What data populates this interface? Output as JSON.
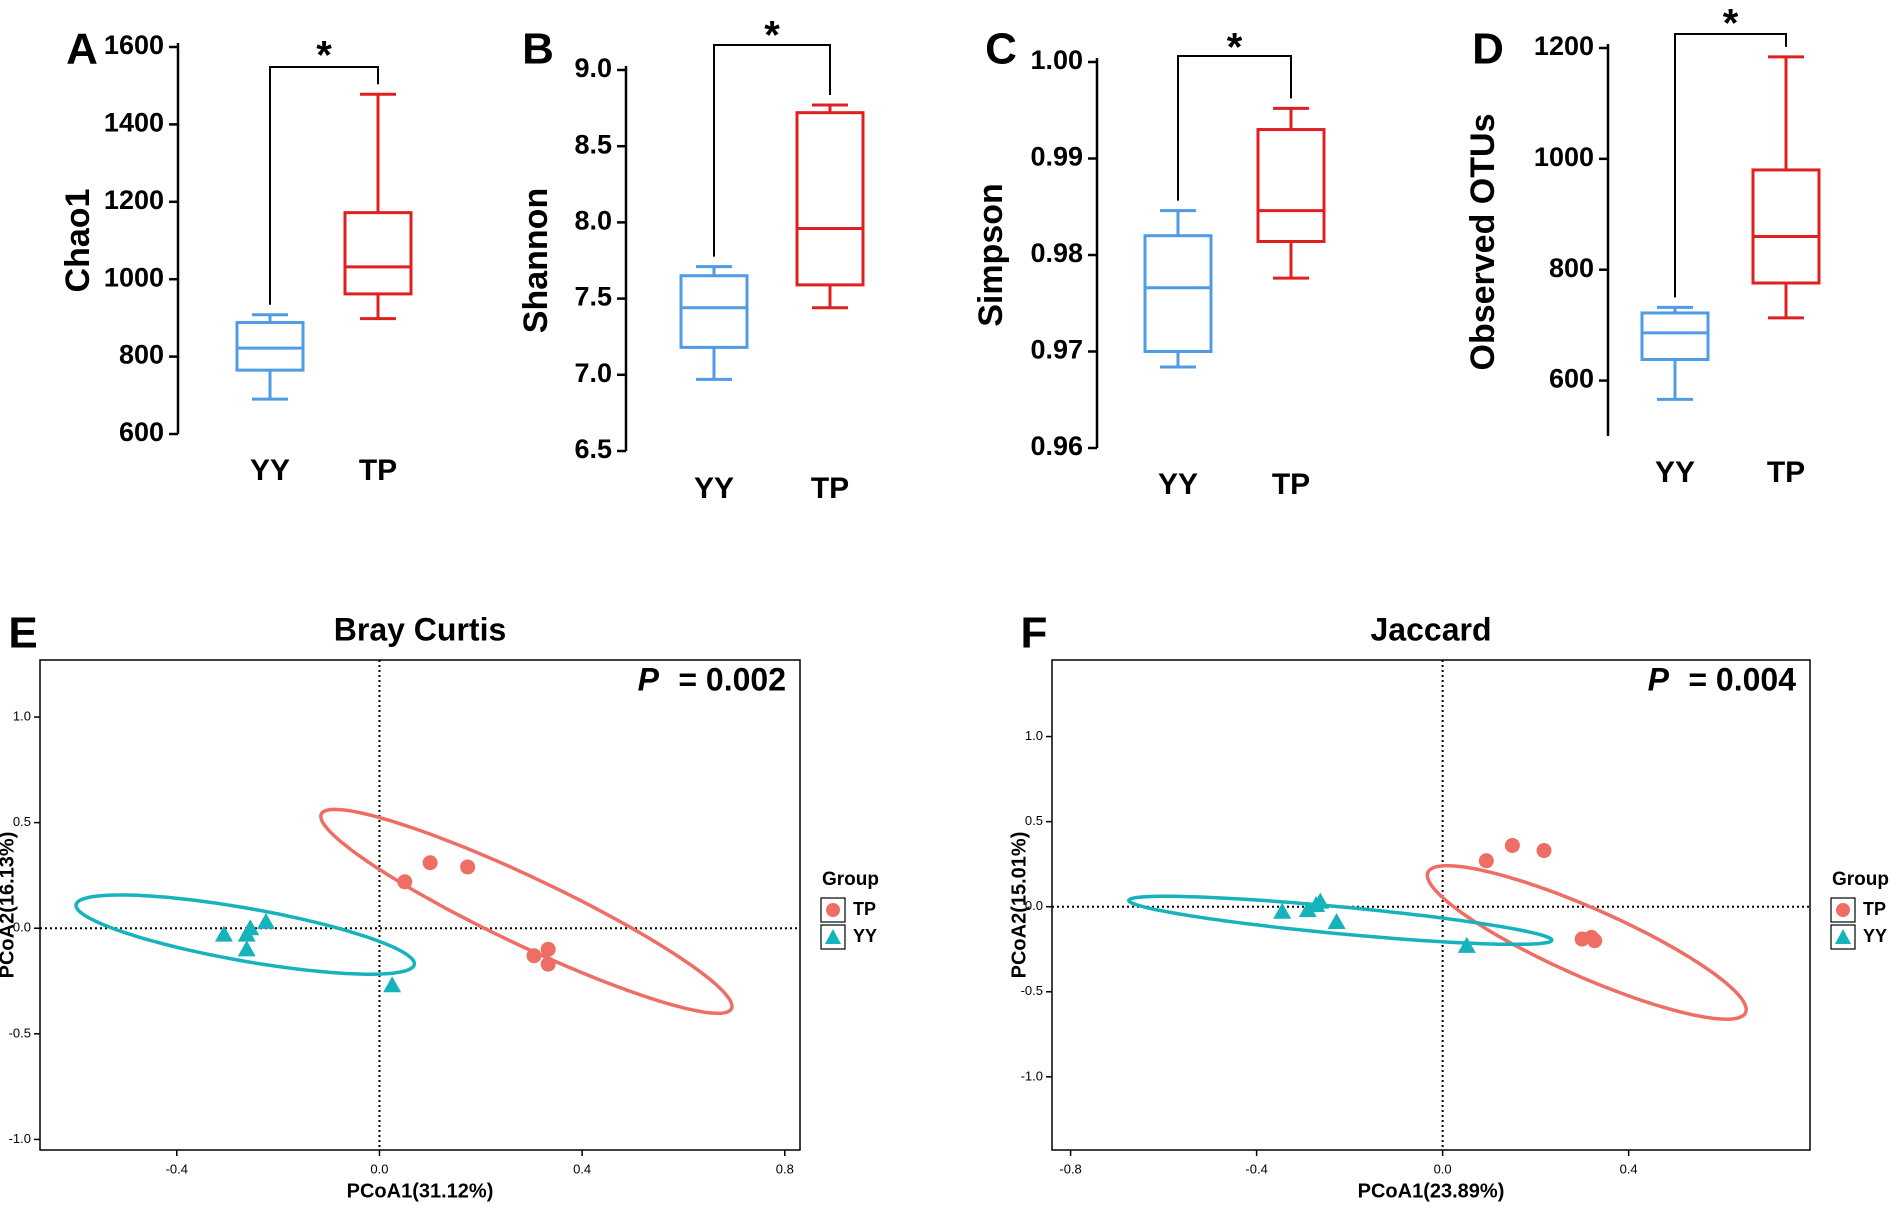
{
  "colors": {
    "yy": "#4f9be6",
    "tp": "#e02020",
    "yy_pcoa": "#17b3bd",
    "tp_pcoa": "#ee6e66",
    "axis": "#000000"
  },
  "chart_data": [
    {
      "type": "box",
      "panel": "A",
      "ylabel": "Chao1",
      "ylim": [
        600,
        1600
      ],
      "yticks": [
        "600",
        "800",
        "1000",
        "1200",
        "1400",
        "1600"
      ],
      "yticks_values": [
        600,
        800,
        1000,
        1200,
        1400,
        1600
      ],
      "categories": [
        "YY",
        "TP"
      ],
      "boxes": [
        {
          "name": "YY",
          "min": 690,
          "q1": 765,
          "median": 822,
          "q3": 888,
          "max": 908
        },
        {
          "name": "TP",
          "min": 898,
          "q1": 962,
          "median": 1032,
          "q3": 1172,
          "max": 1478
        }
      ],
      "significance": "*"
    },
    {
      "type": "box",
      "panel": "B",
      "ylabel": "Shannon",
      "ylim": [
        6.5,
        9.0
      ],
      "yticks": [
        "6.5",
        "7.0",
        "7.5",
        "8.0",
        "8.5",
        "9.0"
      ],
      "yticks_values": [
        6.5,
        7.0,
        7.5,
        8.0,
        8.5,
        9.0
      ],
      "categories": [
        "YY",
        "TP"
      ],
      "boxes": [
        {
          "name": "YY",
          "min": 6.97,
          "q1": 7.18,
          "median": 7.44,
          "q3": 7.65,
          "max": 7.71
        },
        {
          "name": "TP",
          "min": 7.44,
          "q1": 7.59,
          "median": 7.96,
          "q3": 8.72,
          "max": 8.77
        }
      ],
      "significance": "*"
    },
    {
      "type": "box",
      "panel": "C",
      "ylabel": "Simpson",
      "ylim": [
        0.96,
        1.0
      ],
      "yticks": [
        "0.96",
        "0.97",
        "0.98",
        "0.99",
        "1.00"
      ],
      "yticks_values": [
        0.96,
        0.97,
        0.98,
        0.99,
        1.0
      ],
      "categories": [
        "YY",
        "TP"
      ],
      "boxes": [
        {
          "name": "YY",
          "min": 0.9684,
          "q1": 0.97,
          "median": 0.9766,
          "q3": 0.982,
          "max": 0.9846
        },
        {
          "name": "TP",
          "min": 0.9776,
          "q1": 0.9814,
          "median": 0.9846,
          "q3": 0.993,
          "max": 0.9952
        }
      ],
      "significance": "*"
    },
    {
      "type": "box",
      "panel": "D",
      "ylabel": "Observed OTUs",
      "ylim": [
        500,
        1200
      ],
      "yticks": [
        "600",
        "800",
        "1000",
        "1200"
      ],
      "yticks_values": [
        600,
        800,
        1000,
        1200
      ],
      "categories": [
        "YY",
        "TP"
      ],
      "boxes": [
        {
          "name": "YY",
          "min": 566,
          "q1": 638,
          "median": 686,
          "q3": 722,
          "max": 732
        },
        {
          "name": "TP",
          "min": 713,
          "q1": 776,
          "median": 860,
          "q3": 980,
          "max": 1184
        }
      ],
      "significance": "*"
    },
    {
      "type": "scatter",
      "panel": "E",
      "title": "Bray Curtis",
      "xlabel": "PCoA1(31.12%)",
      "ylabel": "PCoA2(16.13%)",
      "xlim": [
        -0.67,
        0.83
      ],
      "ylim": [
        -1.05,
        1.27
      ],
      "xticks": [
        "-0.4",
        "0.0",
        "0.4",
        "0.8"
      ],
      "xticks_values": [
        -0.4,
        0.0,
        0.4,
        0.8
      ],
      "yticks": [
        "-1.0",
        "-0.5",
        "0.0",
        "0.5",
        "1.0"
      ],
      "yticks_values": [
        -1.0,
        -0.5,
        0.0,
        0.5,
        1.0
      ],
      "p_label": "P",
      "p_value": "= 0.002",
      "legend_title": "Group",
      "legend": [
        "TP",
        "YY"
      ],
      "series": [
        {
          "name": "TP",
          "marker": "circle",
          "points": [
            [
              0.05,
              0.22
            ],
            [
              0.1,
              0.31
            ],
            [
              0.174,
              0.29
            ],
            [
              0.305,
              -0.13
            ],
            [
              0.333,
              -0.1
            ],
            [
              0.333,
              -0.17
            ]
          ],
          "ellipse": {
            "cx": 0.29,
            "cy": 0.08,
            "rx": 0.62,
            "ry": 0.115,
            "angle_deg": -50.3
          }
        },
        {
          "name": "YY",
          "marker": "triangle",
          "points": [
            [
              -0.307,
              -0.03
            ],
            [
              -0.255,
              0.0
            ],
            [
              -0.262,
              -0.03
            ],
            [
              -0.262,
              -0.1
            ],
            [
              -0.224,
              0.03
            ],
            [
              0.025,
              -0.27
            ]
          ],
          "ellipse": {
            "cx": -0.265,
            "cy": -0.03,
            "rx": 0.365,
            "ry": 0.116,
            "angle_deg": -25.2
          }
        }
      ]
    },
    {
      "type": "scatter",
      "panel": "F",
      "title": "Jaccard",
      "xlabel": "PCoA1(23.89%)",
      "ylabel": "PCoA2(15.01%)",
      "xlim": [
        -0.84,
        0.79
      ],
      "ylim": [
        -1.43,
        1.45
      ],
      "xticks": [
        "-0.8",
        "-0.4",
        "0.0",
        "0.4"
      ],
      "xticks_values": [
        -0.8,
        -0.4,
        0.0,
        0.4
      ],
      "yticks": [
        "-1.0",
        "-0.5",
        "0.0",
        "0.5",
        "1.0"
      ],
      "yticks_values": [
        -1.0,
        -0.5,
        0.0,
        0.5,
        1.0
      ],
      "p_label": "P",
      "p_value": "= 0.004",
      "legend_title": "Group",
      "legend": [
        "TP",
        "YY"
      ],
      "series": [
        {
          "name": "TP",
          "marker": "circle",
          "points": [
            [
              0.094,
              0.27
            ],
            [
              0.15,
              0.36
            ],
            [
              0.218,
              0.33
            ],
            [
              0.3,
              -0.19
            ],
            [
              0.32,
              -0.18
            ],
            [
              0.327,
              -0.2
            ]
          ],
          "ellipse": {
            "cx": 0.31,
            "cy": -0.21,
            "rx": 0.55,
            "ry": 0.136,
            "angle_deg": -53.8
          }
        },
        {
          "name": "YY",
          "marker": "triangle",
          "points": [
            [
              -0.345,
              -0.03
            ],
            [
              -0.29,
              -0.02
            ],
            [
              -0.272,
              0.01
            ],
            [
              -0.263,
              0.03
            ],
            [
              -0.228,
              -0.09
            ],
            [
              0.052,
              -0.23
            ]
          ],
          "ellipse": {
            "cx": -0.22,
            "cy": -0.08,
            "rx": 0.47,
            "ry": 0.077,
            "angle_deg": -14.8
          }
        }
      ]
    }
  ]
}
